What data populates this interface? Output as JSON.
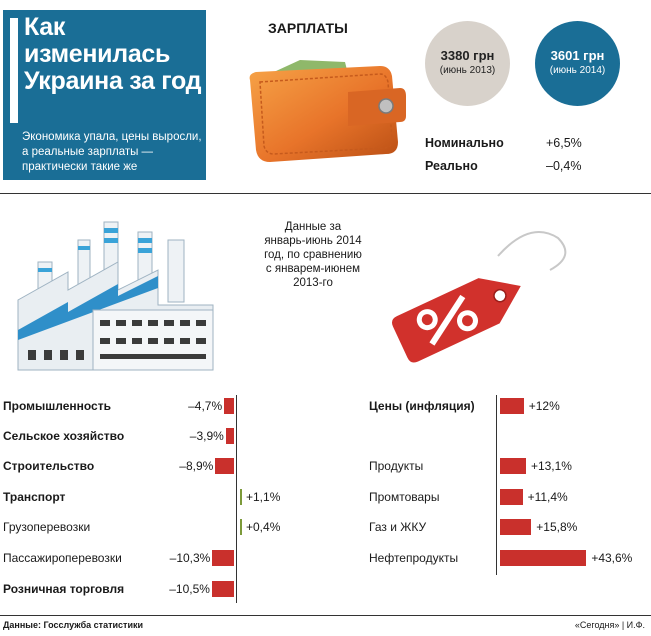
{
  "header": {
    "title": "Как изменилась Украина за год",
    "subtitle": "Экономика упала, цены выросли, а реальные зарплаты — практически такие же"
  },
  "salaries": {
    "label": "ЗАРПЛАТЫ",
    "before": {
      "amount": "3380 грн",
      "period": "(июнь 2013)"
    },
    "after": {
      "amount": "3601 грн",
      "period": "(июнь 2014)"
    },
    "nominal_label": "Номинально",
    "nominal_value": "+6,5%",
    "real_label": "Реально",
    "real_value": "–0,4%"
  },
  "note": "Данные за январь-июнь 2014 год, по сравнению с январем-июнем 2013-го",
  "chart_data": [
    {
      "type": "bar",
      "categories": [
        "Промышленность",
        "Сельское хозяйство",
        "Строительство",
        "Транспорт",
        "Грузоперевозки",
        "Пассажироперевозки",
        "Розничная торговля"
      ],
      "values": [
        -4.7,
        -3.9,
        -8.9,
        1.1,
        0.4,
        -10.3,
        -10.5
      ],
      "labels": [
        "–4,7%",
        "–3,9%",
        "–8,9%",
        "+1,1%",
        "+0,4%",
        "–10,3%",
        "–10,5%"
      ]
    },
    {
      "type": "bar",
      "categories": [
        "Цены (инфляция)",
        "Продукты",
        "Промтовары",
        "Газ и ЖКУ",
        "Нефтепродукты"
      ],
      "values": [
        12,
        13.1,
        11.4,
        15.8,
        43.6
      ],
      "labels": [
        "+12%",
        "+13,1%",
        "+11,4%",
        "+15,8%",
        "+43,6%"
      ]
    }
  ],
  "colors": {
    "blue": "#1a6e96",
    "red": "#c9302c",
    "green": "#7c9a3a",
    "grey": "#d8d2cb"
  },
  "footer": {
    "source": "Данные: Госслужба статистики",
    "credit": "«Сегодня» | И.Ф."
  }
}
